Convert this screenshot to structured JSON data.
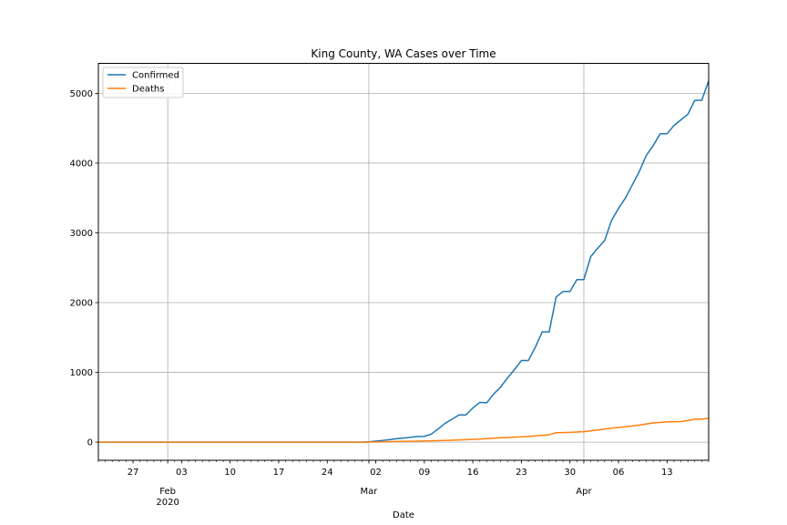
{
  "chart_data": {
    "type": "line",
    "title": "King County, WA Cases over Time",
    "xlabel": "Date",
    "ylabel": "",
    "xlim": [
      "2020-01-22",
      "2020-04-18"
    ],
    "ylim": [
      -260,
      5430
    ],
    "grid": true,
    "legend_position": "top-left",
    "colors": {
      "Confirmed": "#1f77b4",
      "Deaths": "#ff7f0e"
    },
    "y_ticks": [
      0,
      1000,
      2000,
      3000,
      4000,
      5000
    ],
    "x_minor_ticks": [
      {
        "date": "2020-01-27",
        "label": "27"
      },
      {
        "date": "2020-02-03",
        "label": "03"
      },
      {
        "date": "2020-02-10",
        "label": "10"
      },
      {
        "date": "2020-02-17",
        "label": "17"
      },
      {
        "date": "2020-02-24",
        "label": "24"
      },
      {
        "date": "2020-03-02",
        "label": "02"
      },
      {
        "date": "2020-03-09",
        "label": "09"
      },
      {
        "date": "2020-03-16",
        "label": "16"
      },
      {
        "date": "2020-03-23",
        "label": "23"
      },
      {
        "date": "2020-03-30",
        "label": "30"
      },
      {
        "date": "2020-04-06",
        "label": "06"
      },
      {
        "date": "2020-04-13",
        "label": "13"
      }
    ],
    "x_major_ticks": [
      {
        "date": "2020-02-01",
        "label": "Feb",
        "sublabel": "2020"
      },
      {
        "date": "2020-03-01",
        "label": "Mar",
        "sublabel": ""
      },
      {
        "date": "2020-04-01",
        "label": "Apr",
        "sublabel": ""
      }
    ],
    "series": [
      {
        "name": "Confirmed",
        "points": [
          [
            "2020-01-22",
            0
          ],
          [
            "2020-02-29",
            0
          ],
          [
            "2020-03-01",
            5
          ],
          [
            "2020-03-02",
            15
          ],
          [
            "2020-03-03",
            25
          ],
          [
            "2020-03-04",
            35
          ],
          [
            "2020-03-05",
            50
          ],
          [
            "2020-03-06",
            58
          ],
          [
            "2020-03-07",
            70
          ],
          [
            "2020-03-08",
            82
          ],
          [
            "2020-03-09",
            83
          ],
          [
            "2020-03-10",
            115
          ],
          [
            "2020-03-11",
            190
          ],
          [
            "2020-03-12",
            270
          ],
          [
            "2020-03-13",
            330
          ],
          [
            "2020-03-14",
            390
          ],
          [
            "2020-03-15",
            390
          ],
          [
            "2020-03-16",
            490
          ],
          [
            "2020-03-17",
            570
          ],
          [
            "2020-03-18",
            565
          ],
          [
            "2020-03-19",
            690
          ],
          [
            "2020-03-20",
            790
          ],
          [
            "2020-03-21",
            920
          ],
          [
            "2020-03-22",
            1040
          ],
          [
            "2020-03-23",
            1170
          ],
          [
            "2020-03-24",
            1170
          ],
          [
            "2020-03-25",
            1360
          ],
          [
            "2020-03-26",
            1580
          ],
          [
            "2020-03-27",
            1580
          ],
          [
            "2020-03-28",
            2080
          ],
          [
            "2020-03-29",
            2160
          ],
          [
            "2020-03-30",
            2160
          ],
          [
            "2020-03-31",
            2330
          ],
          [
            "2020-04-01",
            2330
          ],
          [
            "2020-04-02",
            2660
          ],
          [
            "2020-04-03",
            2780
          ],
          [
            "2020-04-04",
            2890
          ],
          [
            "2020-04-05",
            3180
          ],
          [
            "2020-04-06",
            3350
          ],
          [
            "2020-04-07",
            3500
          ],
          [
            "2020-04-08",
            3690
          ],
          [
            "2020-04-09",
            3880
          ],
          [
            "2020-04-10",
            4110
          ],
          [
            "2020-04-11",
            4250
          ],
          [
            "2020-04-12",
            4420
          ],
          [
            "2020-04-13",
            4420
          ],
          [
            "2020-04-14",
            4540
          ],
          [
            "2020-04-15",
            4620
          ],
          [
            "2020-04-16",
            4700
          ],
          [
            "2020-04-17",
            4900
          ],
          [
            "2020-04-18",
            4900
          ],
          [
            "2020-04-19",
            5180
          ]
        ]
      },
      {
        "name": "Deaths",
        "points": [
          [
            "2020-01-22",
            0
          ],
          [
            "2020-02-29",
            0
          ],
          [
            "2020-03-01",
            2
          ],
          [
            "2020-03-03",
            5
          ],
          [
            "2020-03-05",
            9
          ],
          [
            "2020-03-08",
            15
          ],
          [
            "2020-03-10",
            20
          ],
          [
            "2020-03-13",
            28
          ],
          [
            "2020-03-15",
            35
          ],
          [
            "2020-03-17",
            43
          ],
          [
            "2020-03-19",
            56
          ],
          [
            "2020-03-21",
            67
          ],
          [
            "2020-03-23",
            76
          ],
          [
            "2020-03-25",
            90
          ],
          [
            "2020-03-27",
            105
          ],
          [
            "2020-03-28",
            136
          ],
          [
            "2020-03-30",
            140
          ],
          [
            "2020-04-01",
            150
          ],
          [
            "2020-04-03",
            175
          ],
          [
            "2020-04-05",
            200
          ],
          [
            "2020-04-07",
            220
          ],
          [
            "2020-04-09",
            245
          ],
          [
            "2020-04-11",
            275
          ],
          [
            "2020-04-13",
            290
          ],
          [
            "2020-04-15",
            295
          ],
          [
            "2020-04-16",
            310
          ],
          [
            "2020-04-17",
            330
          ],
          [
            "2020-04-18",
            330
          ],
          [
            "2020-04-19",
            343
          ]
        ]
      }
    ]
  }
}
